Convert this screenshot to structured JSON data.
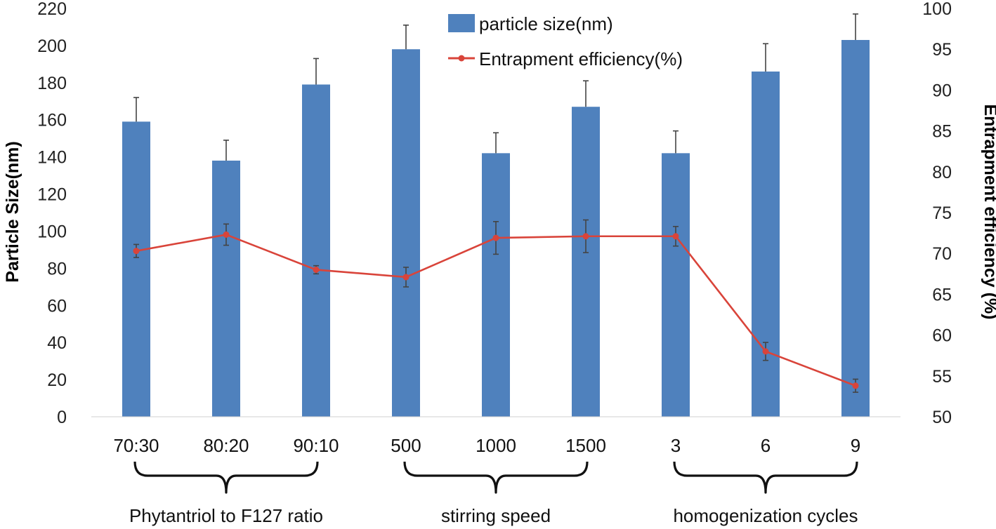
{
  "chart_data": {
    "type": "bar",
    "categories": [
      "70:30",
      "80:20",
      "90:10",
      "500",
      "1000",
      "1500",
      "3",
      "6",
      "9"
    ],
    "groups": [
      {
        "label": "Phytantriol to F127 ratio",
        "categories": [
          "70:30",
          "80:20",
          "90:10"
        ]
      },
      {
        "label": "stirring speed",
        "categories": [
          "500",
          "1000",
          "1500"
        ]
      },
      {
        "label": "homogenization cycles",
        "categories": [
          "3",
          "6",
          "9"
        ]
      }
    ],
    "series": [
      {
        "name": "particle size(nm)",
        "type": "bar",
        "axis": "left",
        "color": "#4F81BD",
        "values": [
          159,
          138,
          179,
          198,
          142,
          167,
          142,
          186,
          203
        ],
        "errors": [
          13,
          11,
          14,
          13,
          11,
          14,
          12,
          15,
          14
        ]
      },
      {
        "name": "Entrapment efficiency(%)",
        "type": "line",
        "axis": "right",
        "color": "#D9443A",
        "values": [
          70.3,
          72.3,
          68.0,
          67.1,
          71.9,
          72.1,
          72.1,
          58.0,
          53.8
        ],
        "errors": [
          0.8,
          1.3,
          0.5,
          1.2,
          2.0,
          2.0,
          1.2,
          1.1,
          0.8
        ]
      }
    ],
    "ylabel": "Particle Size(nm)",
    "y2label": "Entrapment efficiency (%)",
    "ylim": [
      0,
      220
    ],
    "y2lim": [
      50,
      100
    ],
    "yticks": [
      "0",
      "20",
      "40",
      "60",
      "80",
      "100",
      "120",
      "140",
      "160",
      "180",
      "200",
      "220"
    ],
    "y2ticks": [
      "50",
      "55",
      "60",
      "65",
      "70",
      "75",
      "80",
      "85",
      "90",
      "95",
      "100"
    ],
    "legend_position": "top-center",
    "grid": false
  }
}
